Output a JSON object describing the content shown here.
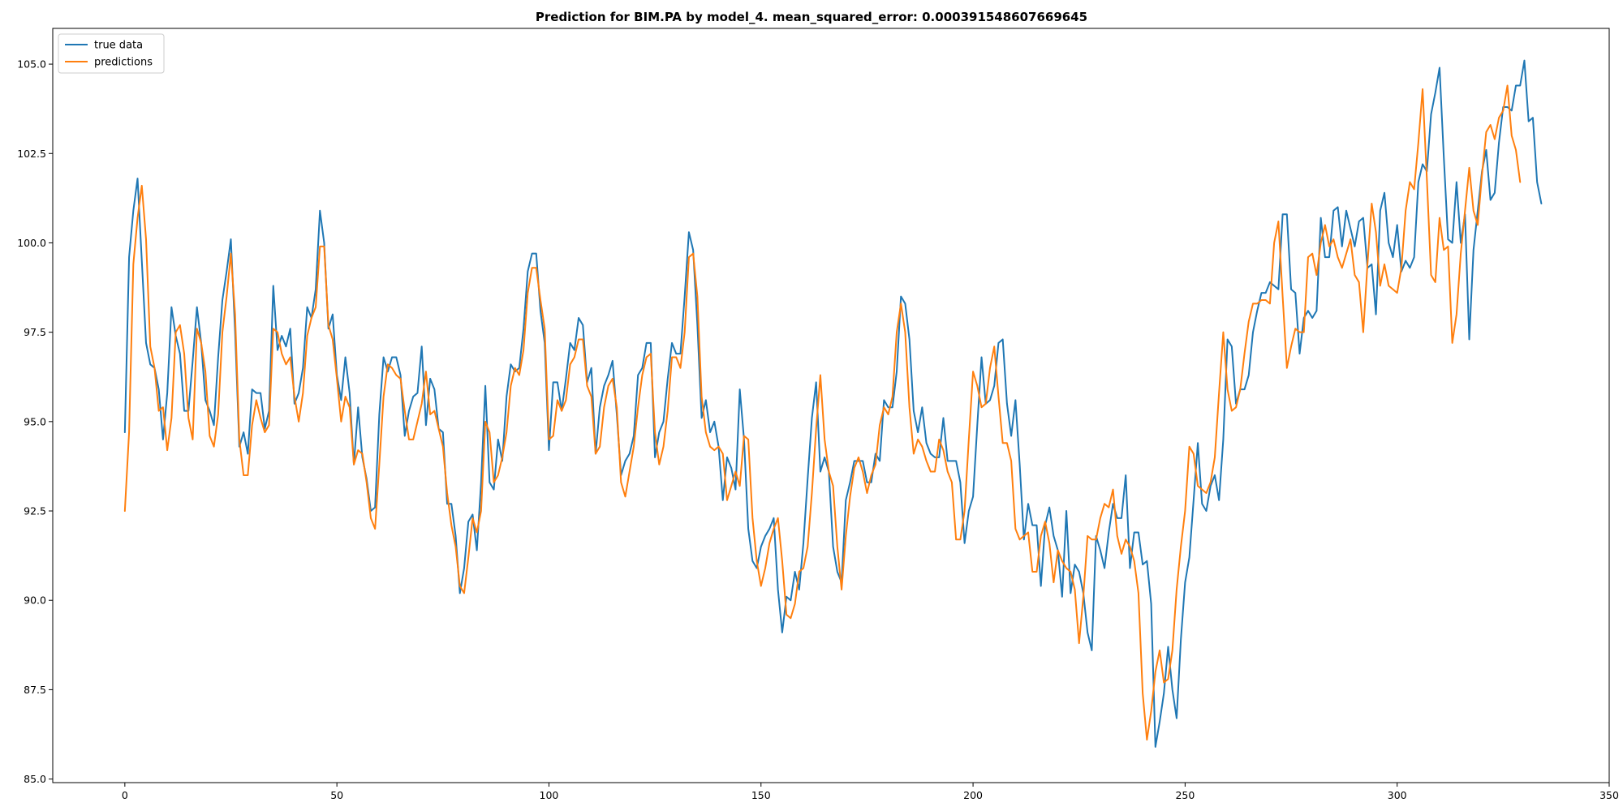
{
  "chart_data": {
    "type": "line",
    "title": "Prediction for BIM.PA by model_4. mean_squared_error: 0.000391548607669645",
    "xlabel": "",
    "ylabel": "",
    "xlim": [
      -17,
      350
    ],
    "ylim": [
      84.9,
      106.0
    ],
    "x_ticks": [
      0,
      50,
      100,
      150,
      200,
      250,
      300,
      350
    ],
    "x_tick_labels": [
      "0",
      "50",
      "100",
      "150",
      "200",
      "250",
      "300",
      "350"
    ],
    "y_ticks": [
      85.0,
      87.5,
      90.0,
      92.5,
      95.0,
      97.5,
      100.0,
      102.5,
      105.0
    ],
    "y_tick_labels": [
      "85.0",
      "87.5",
      "90.0",
      "92.5",
      "95.0",
      "97.5",
      "100.0",
      "102.5",
      "105.0"
    ],
    "grid": false,
    "legend_position": "upper-left",
    "series": [
      {
        "name": "true data",
        "color": "#1f77b4",
        "values": [
          94.7,
          99.6,
          100.9,
          101.8,
          99.5,
          97.2,
          96.6,
          96.5,
          95.9,
          94.5,
          95.8,
          98.2,
          97.4,
          96.9,
          95.3,
          95.3,
          96.7,
          98.2,
          97.2,
          95.6,
          95.3,
          94.9,
          96.8,
          98.4,
          99.2,
          100.1,
          97.5,
          94.3,
          94.7,
          94.1,
          95.9,
          95.8,
          95.8,
          94.8,
          95.3,
          98.8,
          97.0,
          97.4,
          97.1,
          97.6,
          95.5,
          95.8,
          96.5,
          98.2,
          97.9,
          98.7,
          100.9,
          100.0,
          97.6,
          98.0,
          96.3,
          95.6,
          96.8,
          95.8,
          93.8,
          95.4,
          94.0,
          93.4,
          92.5,
          92.6,
          95.2,
          96.8,
          96.4,
          96.8,
          96.8,
          96.3,
          94.6,
          95.3,
          95.7,
          95.8,
          97.1,
          94.9,
          96.2,
          95.9,
          94.8,
          94.7,
          92.7,
          92.7,
          91.8,
          90.2,
          90.9,
          92.2,
          92.4,
          91.4,
          93.3,
          96.0,
          93.3,
          93.1,
          94.5,
          93.9,
          95.7,
          96.6,
          96.4,
          96.5,
          97.6,
          99.2,
          99.7,
          99.7,
          98.1,
          97.2,
          94.2,
          96.1,
          96.1,
          95.3,
          96.2,
          97.2,
          97.0,
          97.9,
          97.7,
          96.1,
          96.5,
          94.1,
          95.4,
          96.0,
          96.3,
          96.7,
          95.2,
          93.5,
          93.9,
          94.1,
          94.6,
          96.3,
          96.5,
          97.2,
          97.2,
          94.0,
          94.7,
          95.0,
          96.2,
          97.2,
          96.9,
          96.9,
          98.5,
          100.3,
          99.8,
          97.7,
          95.1,
          95.6,
          94.7,
          95.0,
          94.3,
          92.8,
          94.0,
          93.7,
          93.1,
          95.9,
          94.5,
          92.0,
          91.1,
          90.9,
          91.5,
          91.8,
          92.0,
          92.3,
          90.3,
          89.1,
          90.1,
          90.0,
          90.8,
          90.3,
          91.6,
          93.4,
          95.1,
          96.1,
          93.6,
          94.0,
          93.6,
          91.5,
          90.8,
          90.5,
          92.8,
          93.3,
          93.9,
          93.9,
          93.9,
          93.3,
          93.3,
          94.1,
          93.9,
          95.6,
          95.4,
          95.4,
          96.4,
          98.5,
          98.3,
          97.3,
          95.3,
          94.7,
          95.4,
          94.4,
          94.1,
          94.0,
          94.0,
          95.1,
          93.9,
          93.9,
          93.9,
          93.3,
          91.6,
          92.5,
          92.9,
          94.9,
          96.8,
          95.5,
          95.6,
          96.0,
          97.2,
          97.3,
          95.5,
          94.6,
          95.6,
          93.8,
          91.7,
          92.7,
          92.1,
          92.1,
          90.4,
          92.1,
          92.6,
          91.8,
          91.4,
          90.1,
          92.5,
          90.2,
          91.0,
          90.8,
          90.2,
          89.1,
          88.6,
          91.8,
          91.4,
          90.9,
          91.9,
          92.7,
          92.3,
          92.3,
          93.5,
          90.9,
          91.9,
          91.9,
          91.0,
          91.1,
          89.9,
          85.9,
          86.6,
          87.4,
          88.7,
          87.5,
          86.7,
          88.9,
          90.5,
          91.2,
          92.8,
          94.4,
          92.7,
          92.5,
          93.2,
          93.5,
          92.8,
          94.5,
          97.3,
          97.1,
          95.5,
          95.9,
          95.9,
          96.3,
          97.5,
          98.1,
          98.6,
          98.6,
          98.9,
          98.8,
          98.7,
          100.8,
          100.8,
          98.7,
          98.6,
          96.9,
          97.9,
          98.1,
          97.9,
          98.1,
          100.7,
          99.6,
          99.6,
          100.9,
          101.0,
          99.9,
          100.9,
          100.4,
          99.9,
          100.6,
          100.7,
          99.3,
          99.4,
          98.0,
          100.9,
          101.4,
          100.0,
          99.6,
          100.5,
          99.2,
          99.5,
          99.3,
          99.6,
          101.7,
          102.2,
          102.0,
          103.6,
          104.2,
          104.9,
          102.4,
          100.1,
          100.0,
          101.7,
          100.0,
          100.8,
          97.3,
          99.8,
          100.9,
          102.0,
          102.6,
          101.2,
          101.4,
          102.8,
          103.8,
          103.8,
          103.7,
          104.4,
          104.4,
          105.1,
          103.4,
          103.5,
          101.7,
          101.1
        ]
      },
      {
        "name": "predictions",
        "color": "#ff7f0e",
        "values": [
          92.5,
          94.7,
          99.4,
          100.7,
          101.6,
          100.1,
          97.1,
          96.5,
          95.3,
          95.4,
          94.2,
          95.1,
          97.5,
          97.7,
          96.9,
          95.1,
          94.5,
          97.6,
          97.2,
          96.4,
          94.6,
          94.3,
          95.2,
          97.5,
          98.5,
          99.7,
          98.0,
          94.5,
          93.5,
          93.5,
          94.9,
          95.6,
          95.1,
          94.7,
          94.9,
          97.6,
          97.5,
          96.9,
          96.6,
          96.8,
          95.7,
          95.0,
          95.8,
          97.4,
          97.9,
          98.2,
          99.9,
          99.9,
          97.7,
          97.3,
          96.2,
          95.0,
          95.7,
          95.4,
          93.8,
          94.2,
          94.1,
          93.3,
          92.3,
          92.0,
          93.8,
          95.7,
          96.6,
          96.5,
          96.3,
          96.2,
          95.3,
          94.5,
          94.5,
          95.0,
          95.5,
          96.4,
          95.2,
          95.3,
          94.8,
          94.3,
          93.0,
          92.1,
          91.5,
          90.4,
          90.2,
          91.2,
          92.3,
          91.9,
          92.5,
          95.0,
          94.7,
          93.3,
          93.5,
          94.0,
          94.7,
          96.0,
          96.5,
          96.3,
          97.0,
          98.6,
          99.3,
          99.3,
          98.4,
          97.6,
          94.5,
          94.6,
          95.6,
          95.3,
          95.6,
          96.6,
          96.8,
          97.3,
          97.3,
          96.0,
          95.7,
          94.1,
          94.3,
          95.4,
          96.0,
          96.2,
          95.4,
          93.3,
          92.9,
          93.6,
          94.3,
          95.4,
          96.3,
          96.8,
          96.9,
          94.7,
          93.8,
          94.3,
          95.3,
          96.8,
          96.8,
          96.5,
          97.5,
          99.6,
          99.7,
          98.5,
          95.7,
          94.7,
          94.3,
          94.2,
          94.3,
          94.1,
          92.8,
          93.2,
          93.6,
          93.2,
          94.6,
          94.5,
          92.3,
          91.1,
          90.4,
          90.9,
          91.6,
          92.0,
          92.3,
          91.1,
          89.6,
          89.5,
          89.9,
          90.8,
          90.9,
          91.5,
          93.0,
          94.8,
          96.3,
          94.5,
          93.6,
          93.2,
          91.5,
          90.3,
          91.8,
          92.9,
          93.7,
          94.0,
          93.6,
          93.0,
          93.5,
          93.8,
          94.9,
          95.4,
          95.2,
          95.7,
          97.5,
          98.3,
          97.5,
          95.4,
          94.1,
          94.5,
          94.3,
          93.9,
          93.6,
          93.6,
          94.5,
          94.2,
          93.6,
          93.3,
          91.7,
          91.7,
          92.5,
          94.5,
          96.4,
          96.0,
          95.4,
          95.5,
          96.5,
          97.1,
          95.7,
          94.4,
          94.4,
          93.9,
          92.0,
          91.7,
          91.8,
          91.9,
          90.8,
          90.8,
          91.8,
          92.2,
          91.6,
          90.5,
          91.4,
          91.1,
          90.9,
          90.8,
          90.3,
          88.8,
          90.1,
          91.8,
          91.7,
          91.7,
          92.3,
          92.7,
          92.6,
          93.1,
          91.8,
          91.3,
          91.7,
          91.5,
          91.1,
          90.2,
          87.4,
          86.1,
          86.9,
          88.0,
          88.6,
          87.7,
          87.8,
          88.6,
          90.3,
          91.5,
          92.5,
          94.3,
          94.1,
          93.2,
          93.1,
          93.0,
          93.3,
          94.0,
          95.8,
          97.5,
          95.9,
          95.3,
          95.4,
          95.9,
          96.9,
          97.8,
          98.3,
          98.3,
          98.4,
          98.4,
          98.3,
          100.0,
          100.6,
          98.5,
          96.5,
          97.1,
          97.6,
          97.5,
          97.5,
          99.6,
          99.7,
          99.1,
          100.0,
          100.5,
          99.9,
          100.1,
          99.6,
          99.3,
          99.7,
          100.1,
          99.1,
          98.9,
          97.5,
          99.4,
          101.1,
          100.3,
          98.8,
          99.4,
          98.8,
          98.7,
          98.6,
          99.3,
          100.9,
          101.7,
          101.5,
          102.8,
          104.3,
          101.8,
          99.1,
          98.9,
          100.7,
          99.8,
          99.9,
          97.2,
          98.0,
          99.7,
          100.9,
          102.1,
          100.9,
          100.5,
          101.9,
          103.1,
          103.3,
          102.9,
          103.5,
          103.7,
          104.4,
          103.0,
          102.6,
          101.7
        ]
      }
    ]
  }
}
